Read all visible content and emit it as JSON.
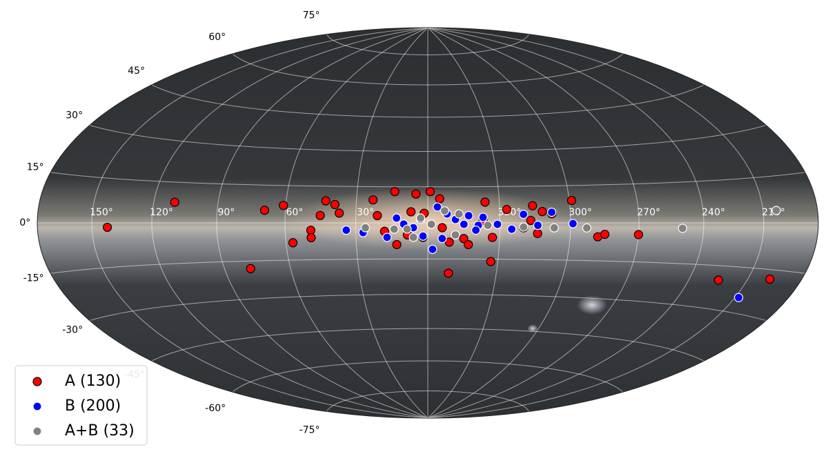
{
  "chart_data": {
    "type": "scatter",
    "projection": "hammer",
    "grid": true,
    "legend": "lower left",
    "xlim": [
      180,
      -180
    ],
    "ylim": [
      -90,
      90
    ],
    "xticks": [
      {
        "value": 150,
        "label": "150°"
      },
      {
        "value": 120,
        "label": "120°"
      },
      {
        "value": 90,
        "label": "90°"
      },
      {
        "value": 60,
        "label": "60°"
      },
      {
        "value": 30,
        "label": "30°"
      },
      {
        "value": 0,
        "label": null
      },
      {
        "value": 330,
        "label": "330°"
      },
      {
        "value": 300,
        "label": "300°"
      },
      {
        "value": 270,
        "label": "270°"
      },
      {
        "value": 240,
        "label": "240°"
      },
      {
        "value": 210,
        "label": "210°"
      }
    ],
    "yticks": [
      {
        "value": 75,
        "label": "75°"
      },
      {
        "value": 60,
        "label": "60°"
      },
      {
        "value": 45,
        "label": "45°"
      },
      {
        "value": 30,
        "label": "30°"
      },
      {
        "value": 15,
        "label": "15°"
      },
      {
        "value": 0,
        "label": "0°"
      },
      {
        "value": -15,
        "label": "-15°"
      },
      {
        "value": -30,
        "label": "-30°"
      },
      {
        "value": -45,
        "label": "-45°"
      },
      {
        "value": -60,
        "label": "-60°"
      },
      {
        "value": -75,
        "label": "-75°"
      }
    ],
    "series": [
      {
        "name": "A (130)",
        "color": "#ff0000",
        "edgecolor": "#000000",
        "x": [
          142,
          110,
          78,
          69,
          61,
          57,
          49,
          49,
          45,
          43,
          39,
          37,
          23,
          21,
          14,
          5,
          359,
          355,
          13,
          18,
          7,
          2,
          351,
          345,
          343,
          351,
          336,
          333,
          333,
          327,
          316,
          314,
          312,
          308,
          299,
          288,
          285,
          270,
          225,
          198,
          1.5,
          354,
          8.5,
          337,
          317,
          320
        ],
        "y": [
          -1.5,
          7.6,
          -18,
          5,
          7,
          -8,
          -3,
          -6,
          3,
          9,
          7.5,
          4,
          9.5,
          3,
          13,
          12,
          13,
          10,
          -9,
          -3.5,
          4.6,
          -6,
          -8,
          -6.5,
          -9,
          -21,
          8.6,
          -16,
          -6,
          5.5,
          7,
          -4.3,
          4.6,
          3.7,
          9,
          -5.5,
          -4.5,
          -4.5,
          -20,
          -18,
          4,
          -2,
          -5,
          1,
          1,
          -2
        ]
      },
      {
        "name": "B (200)",
        "color": "#0000ff",
        "edgecolor": "#ffffff",
        "x": [
          34,
          27,
          13,
          10,
          17,
          6,
          3,
          358,
          356,
          352,
          348.5,
          345,
          343,
          339,
          337,
          331,
          325,
          320,
          314,
          308,
          299,
          208,
          2,
          354,
          340
        ],
        "y": [
          -3,
          -4,
          2,
          -0.5,
          -6,
          -2,
          1.5,
          -11,
          6.6,
          3.7,
          1.4,
          -0.6,
          3,
          -1,
          2.3,
          -0.6,
          -2.6,
          3.5,
          -1,
          4.3,
          -0.3,
          -25,
          -5.5,
          -6.5,
          -3
        ]
      },
      {
        "name": "A+B (33)",
        "color": "#808080",
        "edgecolor": "#ffffff",
        "x": [
          26,
          14,
          8.6,
          3,
          358.5,
          353,
          347,
          348.5,
          335,
          320,
          307,
          293,
          250,
          203,
          6
        ],
        "y": [
          -2,
          -2.6,
          -2.6,
          2,
          -0.6,
          5,
          3.7,
          -5,
          -1,
          -1.7,
          -2,
          -2,
          -2,
          4,
          -6
        ]
      }
    ]
  }
}
